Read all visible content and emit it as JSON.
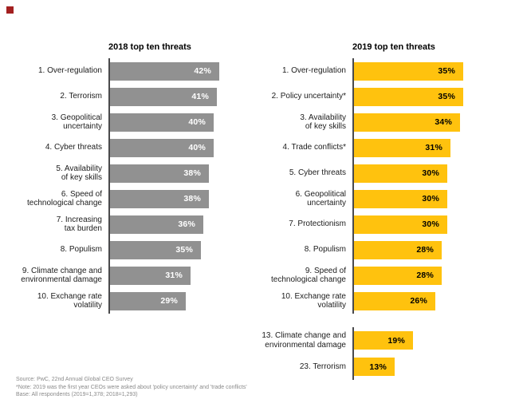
{
  "brand": {
    "mark_color": "#a32020"
  },
  "footer": {
    "lines": [
      "Source: PwC, 22nd Annual Global CEO Survey",
      "*Note: 2019 was the first year CEOs were asked about 'policy uncertainty' and 'trade conflicts'",
      "Base: All respondents (2019=1,378; 2018=1,293)"
    ]
  },
  "chart_data": [
    {
      "type": "bar",
      "orientation": "horizontal",
      "title": "2018 top ten threats",
      "categories": [
        "1. Over-regulation",
        "2. Terrorism",
        "3. Geopolitical uncertainty",
        "4. Cyber threats",
        "5. Availability of key skills",
        "6. Speed of technological change",
        "7. Increasing tax burden",
        "8. Populism",
        "9. Climate change and environmental damage",
        "10. Exchange rate volatility"
      ],
      "display_labels": [
        "1. Over-regulation",
        "2. Terrorism",
        "3. Geopolitical\nuncertainty",
        "4. Cyber threats",
        "5. Availability\nof key skills",
        "6. Speed of\ntechnological change",
        "7. Increasing\ntax burden",
        "8. Populism",
        "9. Climate change and\nenvironmental damage",
        "10. Exchange rate\nvolatility"
      ],
      "values": [
        42,
        41,
        40,
        40,
        38,
        38,
        36,
        35,
        31,
        29
      ],
      "value_labels": [
        "42%",
        "41%",
        "40%",
        "40%",
        "38%",
        "38%",
        "36%",
        "35%",
        "31%",
        "29%"
      ],
      "unit": "%",
      "xlim": [
        0,
        42
      ],
      "grid": false,
      "legend": false,
      "value_label_position": "inside-end",
      "bar_color": "#919191",
      "value_label_color": "#ffffff"
    },
    {
      "type": "bar",
      "orientation": "horizontal",
      "title": "2019 top ten threats",
      "categories": [
        "1. Over-regulation",
        "2. Policy uncertainty*",
        "3. Availability of key skills",
        "4. Trade conflicts*",
        "5. Cyber threats",
        "6. Geopolitical uncertainty",
        "7. Protectionism",
        "8. Populism",
        "9. Speed of technological change",
        "10. Exchange rate volatility",
        "13. Climate change and environmental damage",
        "23. Terrorism"
      ],
      "display_labels": [
        "1. Over-regulation",
        "2. Policy uncertainty*",
        "3. Availability\nof key skills",
        "4. Trade conflicts*",
        "5. Cyber threats",
        "6. Geopolitical\nuncertainty",
        "7. Protectionism",
        "8. Populism",
        "9. Speed of\ntechnological change",
        "10. Exchange rate\nvolatility",
        "13. Climate change and\nenvironmental damage",
        "23. Terrorism"
      ],
      "values": [
        35,
        35,
        34,
        31,
        30,
        30,
        30,
        28,
        28,
        26,
        19,
        13
      ],
      "value_labels": [
        "35%",
        "35%",
        "34%",
        "31%",
        "30%",
        "30%",
        "30%",
        "28%",
        "28%",
        "26%",
        "19%",
        "13%"
      ],
      "unit": "%",
      "xlim": [
        0,
        35
      ],
      "grid": false,
      "legend": false,
      "value_label_position": "inside-end",
      "gap_after_index": 9,
      "bar_color": "#ffc20e",
      "value_label_color": "#000000"
    }
  ]
}
